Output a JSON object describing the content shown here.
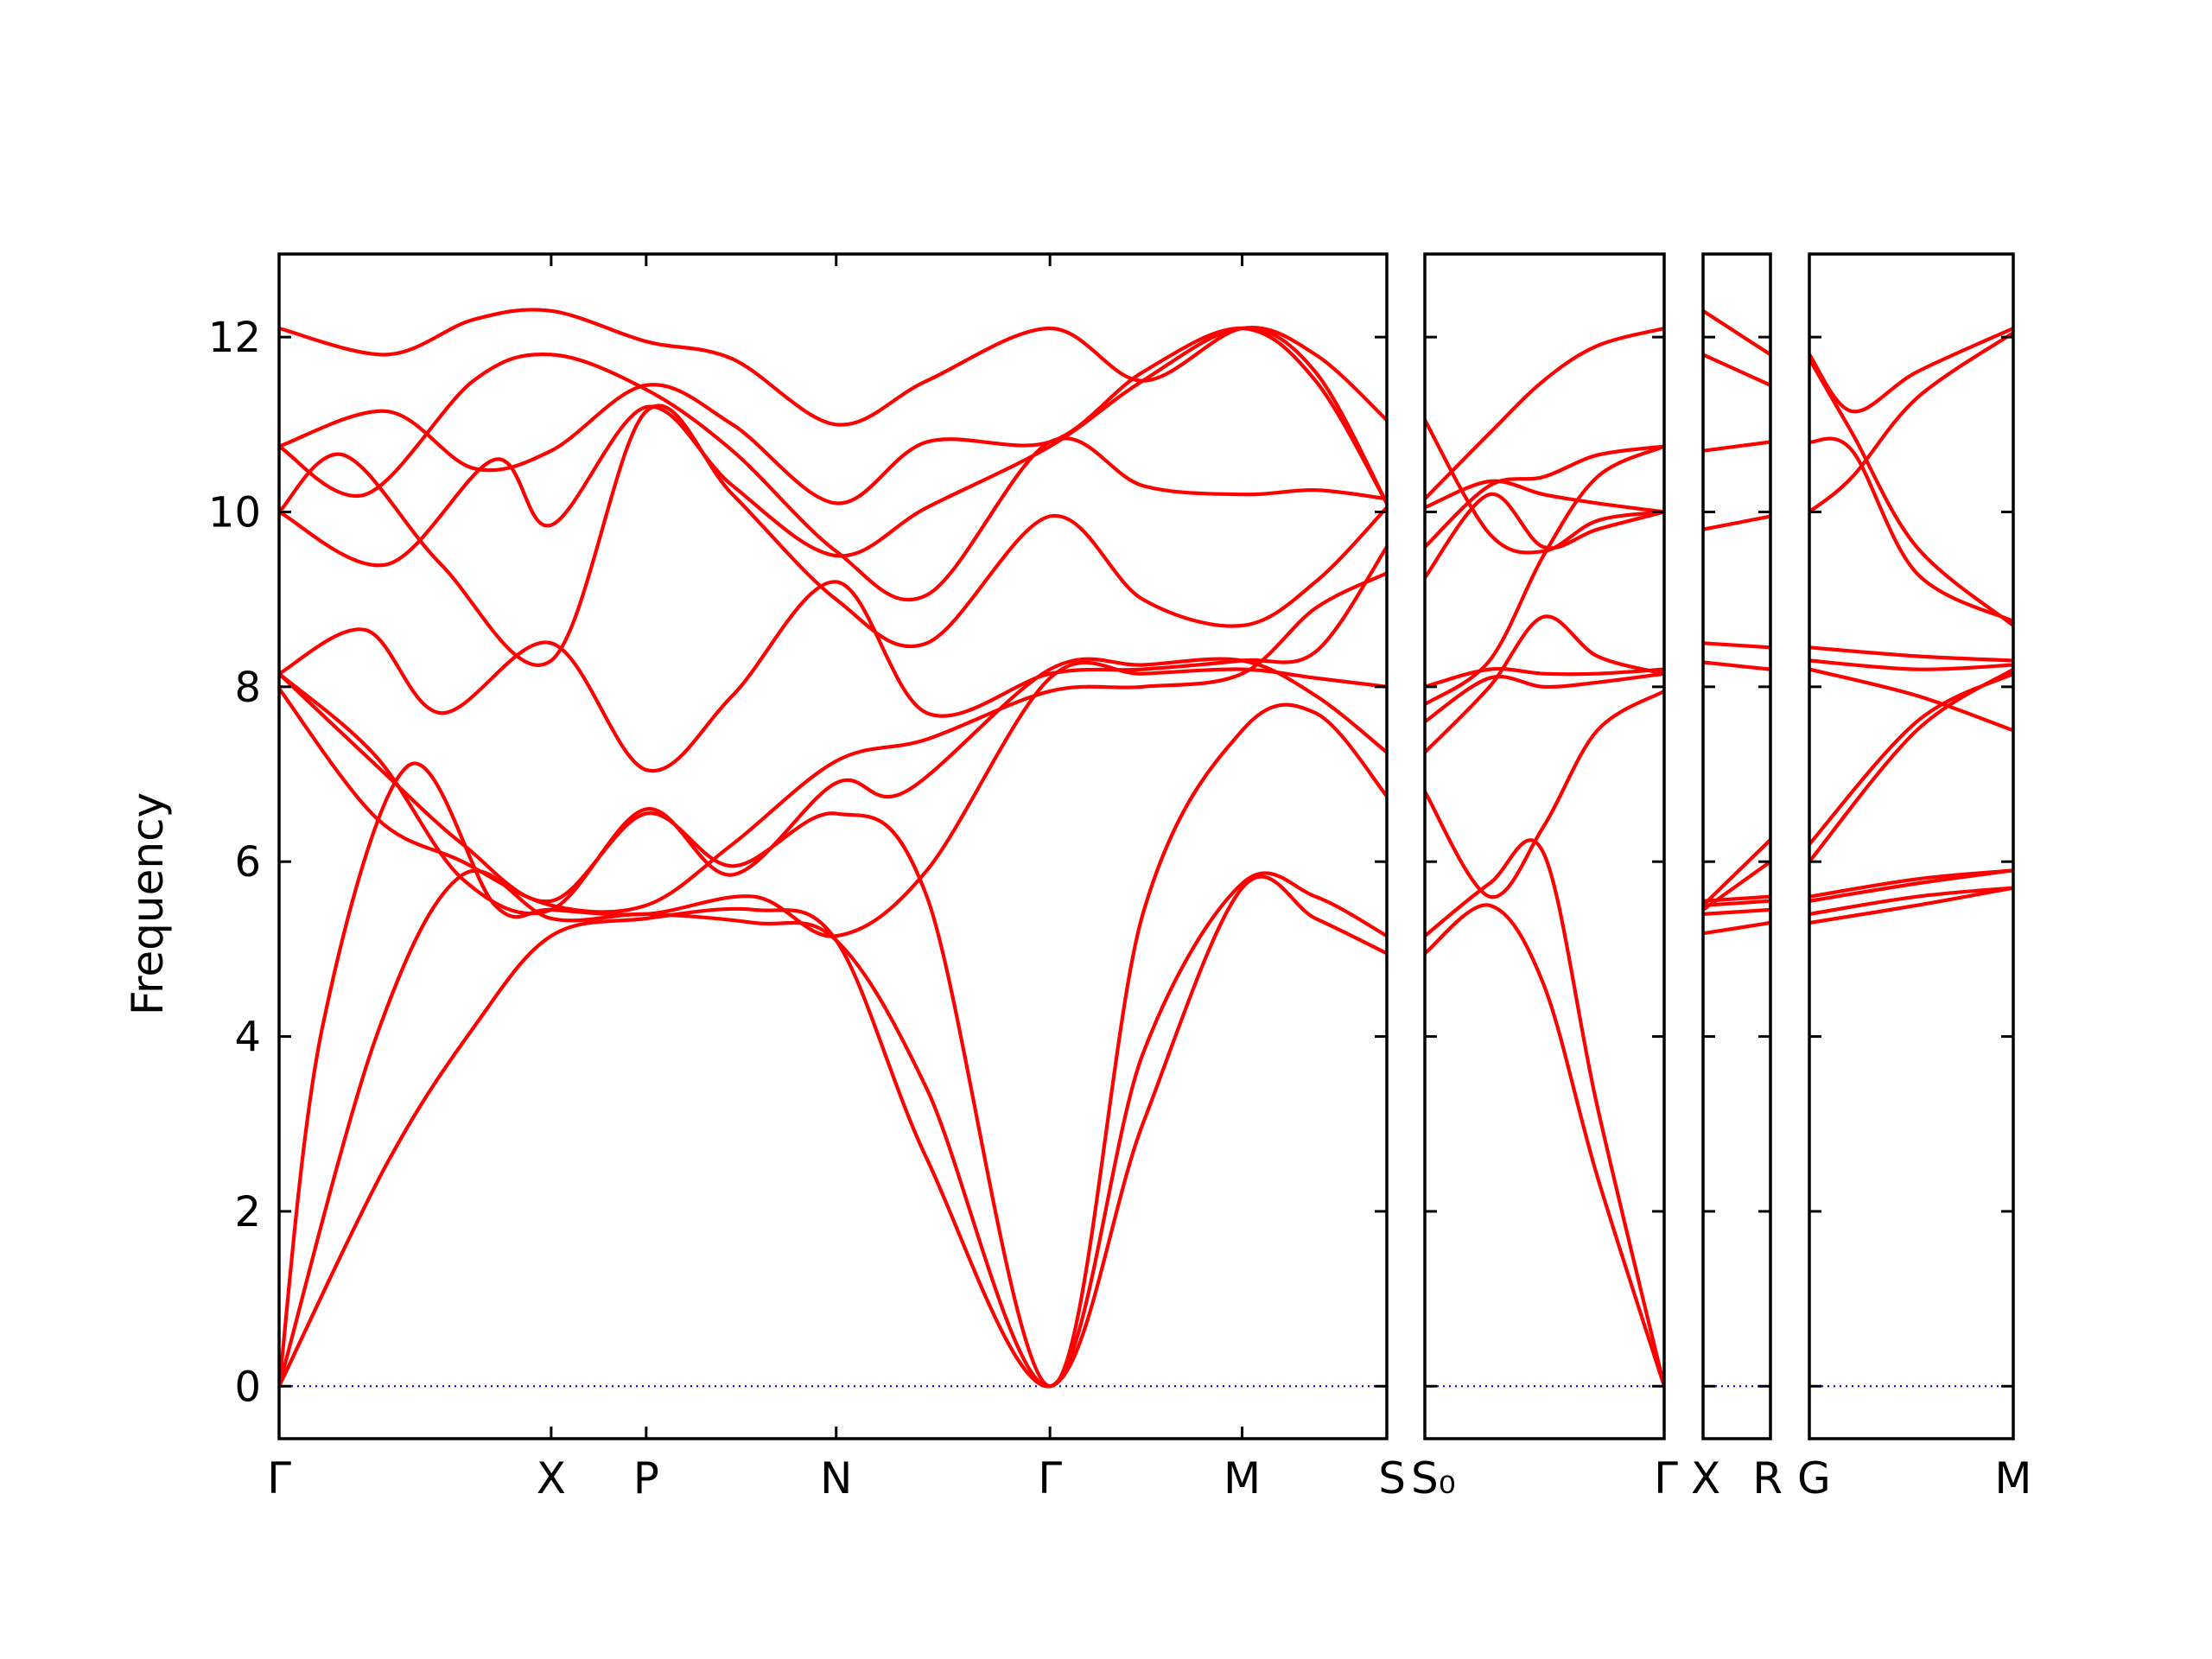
{
  "chart_data": {
    "type": "line",
    "title": "",
    "xlabel": "",
    "ylabel": "Frequency",
    "ylim": [
      -0.6,
      12.95
    ],
    "yticks": [
      0,
      2,
      4,
      6,
      8,
      10,
      12
    ],
    "grid": false,
    "legend": "none",
    "colors": {
      "band": "#ff0000",
      "zero": "#0000cc",
      "axis": "#000000"
    },
    "zero_line": {
      "value": 0,
      "style": "dotted"
    },
    "panels": [
      {
        "labels": [
          "Γ",
          "X",
          "P",
          "N",
          "Γ",
          "M",
          "S"
        ],
        "positions": [
          0,
          1.26,
          1.7,
          2.58,
          3.57,
          4.46,
          5.13
        ],
        "series": [
          {
            "x": [
              0,
              0.5,
              0.9,
              1.26,
              1.7,
              2.2,
              2.58,
              3.0,
              3.57,
              4.0,
              4.46,
              4.8,
              5.13
            ],
            "y": [
              0,
              2.55,
              4.1,
              5.15,
              5.35,
              5.45,
              5.1,
              2.6,
              0,
              3.0,
              5.7,
              5.35,
              4.95
            ]
          },
          {
            "x": [
              0,
              0.45,
              0.85,
              1.26,
              1.7,
              2.2,
              2.58,
              3.0,
              3.57,
              4.0,
              4.46,
              4.8,
              5.13
            ],
            "y": [
              0,
              4.0,
              5.85,
              5.35,
              5.4,
              5.3,
              5.1,
              3.4,
              0,
              3.8,
              5.75,
              5.6,
              5.15
            ]
          },
          {
            "x": [
              0,
              0.2,
              0.6,
              1.0,
              1.26,
              1.7,
              2.2,
              2.58,
              3.0,
              3.57,
              4.0,
              4.46,
              4.8,
              5.13
            ],
            "y": [
              0,
              4.1,
              7.1,
              5.5,
              5.45,
              5.4,
              5.6,
              5.15,
              5.9,
              8.1,
              8.15,
              8.2,
              8.1,
              8.0
            ]
          },
          {
            "x": [
              0,
              0.45,
              0.85,
              1.26,
              1.7,
              2.1,
              2.58,
              3.0,
              3.57,
              4.0,
              4.46,
              4.8,
              5.13
            ],
            "y": [
              8.15,
              7.1,
              6.2,
              5.55,
              6.55,
              5.95,
              6.55,
              5.6,
              0,
              5.4,
              7.5,
              7.7,
              6.75
            ]
          },
          {
            "x": [
              0,
              0.45,
              0.85,
              1.26,
              1.7,
              2.1,
              2.58,
              2.9,
              3.57,
              4.0,
              4.46,
              4.8,
              5.13
            ],
            "y": [
              8.15,
              7.2,
              5.8,
              5.45,
              6.6,
              5.85,
              6.9,
              6.8,
              8.2,
              8.25,
              8.3,
              7.9,
              7.25
            ]
          },
          {
            "x": [
              0,
              0.45,
              0.85,
              1.26,
              1.7,
              2.1,
              2.58,
              3.0,
              3.57,
              4.0,
              4.46,
              4.8,
              5.13
            ],
            "y": [
              7.98,
              6.5,
              6.0,
              5.5,
              5.5,
              6.2,
              7.15,
              7.4,
              7.95,
              8.0,
              8.15,
              8.9,
              9.3
            ]
          },
          {
            "x": [
              0,
              0.4,
              0.75,
              1.26,
              1.7,
              2.1,
              2.58,
              3.0,
              3.57,
              4.0,
              4.46,
              4.8,
              5.13
            ],
            "y": [
              8.15,
              8.65,
              7.7,
              8.5,
              7.05,
              7.9,
              9.2,
              7.7,
              8.15,
              8.2,
              8.3,
              8.4,
              9.6
            ]
          },
          {
            "x": [
              0,
              0.3,
              0.75,
              1.26,
              1.7,
              2.1,
              2.58,
              3.0,
              3.57,
              4.0,
              4.46,
              4.8,
              5.13
            ],
            "y": [
              10.0,
              10.65,
              9.4,
              8.3,
              11.15,
              10.2,
              9.0,
              8.5,
              9.95,
              9.0,
              8.7,
              9.2,
              10.05
            ]
          },
          {
            "x": [
              0,
              0.5,
              1.0,
              1.26,
              1.7,
              2.1,
              2.58,
              3.0,
              3.57,
              4.0,
              4.46,
              4.8,
              5.13
            ],
            "y": [
              10.0,
              9.4,
              10.6,
              9.85,
              11.2,
              10.3,
              9.5,
              10.05,
              10.75,
              11.5,
              12.1,
              11.6,
              10.1
            ]
          },
          {
            "x": [
              0,
              0.5,
              0.9,
              1.26,
              1.7,
              2.1,
              2.58,
              3.0,
              3.57,
              4.0,
              4.46,
              4.8,
              5.13
            ],
            "y": [
              10.75,
              11.15,
              10.5,
              10.7,
              11.45,
              11.0,
              10.1,
              10.8,
              10.8,
              11.6,
              12.1,
              11.5,
              10.1
            ]
          },
          {
            "x": [
              0,
              0.4,
              0.9,
              1.26,
              1.7,
              2.1,
              2.58,
              3.0,
              3.57,
              4.0,
              4.46,
              4.8,
              5.13
            ],
            "y": [
              10.75,
              10.2,
              11.5,
              11.8,
              11.4,
              10.7,
              9.55,
              9.05,
              10.8,
              10.3,
              10.2,
              10.25,
              10.15
            ]
          },
          {
            "x": [
              0,
              0.5,
              0.9,
              1.26,
              1.7,
              2.1,
              2.58,
              3.0,
              3.57,
              4.0,
              4.46,
              4.8,
              5.13
            ],
            "y": [
              12.1,
              11.8,
              12.2,
              12.3,
              11.95,
              11.75,
              11.0,
              11.5,
              12.1,
              11.5,
              12.1,
              11.8,
              11.05
            ]
          }
        ]
      },
      {
        "labels": [
          "S₀",
          "Γ"
        ],
        "positions": [
          0,
          1.11
        ],
        "series": [
          {
            "x": [
              0,
              0.3,
              0.55,
              0.8,
              1.11
            ],
            "y": [
              4.95,
              5.5,
              4.6,
              2.4,
              0
            ]
          },
          {
            "x": [
              0,
              0.3,
              0.55,
              0.8,
              1.11
            ],
            "y": [
              5.15,
              5.75,
              6.1,
              3.2,
              0
            ]
          },
          {
            "x": [
              0,
              0.3,
              0.55,
              0.8,
              1.11
            ],
            "y": [
              6.8,
              5.6,
              6.4,
              7.5,
              7.95
            ]
          },
          {
            "x": [
              0,
              0.3,
              0.55,
              0.8,
              1.11
            ],
            "y": [
              7.25,
              8.0,
              8.8,
              8.35,
              8.15
            ]
          },
          {
            "x": [
              0,
              0.3,
              0.55,
              0.8,
              1.11
            ],
            "y": [
              8.0,
              8.2,
              8.15,
              8.15,
              8.2
            ]
          },
          {
            "x": [
              0,
              0.3,
              0.55,
              0.8,
              1.11
            ],
            "y": [
              7.8,
              8.3,
              9.5,
              10.4,
              10.75
            ]
          },
          {
            "x": [
              0,
              0.3,
              0.55,
              0.8,
              1.11
            ],
            "y": [
              9.25,
              10.2,
              9.6,
              9.8,
              10.0
            ]
          },
          {
            "x": [
              0,
              0.3,
              0.55,
              0.8,
              1.11
            ],
            "y": [
              9.6,
              10.3,
              10.4,
              10.65,
              10.75
            ]
          },
          {
            "x": [
              0,
              0.3,
              0.55,
              0.8,
              1.11
            ],
            "y": [
              10.05,
              10.35,
              10.2,
              10.1,
              10.0
            ]
          },
          {
            "x": [
              0,
              0.3,
              0.55,
              0.8,
              1.11
            ],
            "y": [
              10.15,
              10.9,
              11.5,
              11.9,
              12.1
            ]
          },
          {
            "x": [
              0,
              0.3,
              0.55,
              0.8,
              1.11
            ],
            "y": [
              11.05,
              9.75,
              9.55,
              9.9,
              10.0
            ]
          },
          {
            "x": [
              0,
              0.3,
              0.55,
              0.8,
              1.11
            ],
            "y": [
              7.6,
              8.1,
              8.0,
              8.05,
              8.15
            ]
          }
        ]
      },
      {
        "labels": [
          "X",
          "R"
        ],
        "positions": [
          0,
          0.31
        ],
        "series": [
          {
            "x": [
              0,
              0.31
            ],
            "y": [
              5.18,
              5.3
            ]
          },
          {
            "x": [
              0,
              0.31
            ],
            "y": [
              5.4,
              5.45
            ]
          },
          {
            "x": [
              0,
              0.31
            ],
            "y": [
              5.5,
              5.55
            ]
          },
          {
            "x": [
              0,
              0.31
            ],
            "y": [
              5.55,
              5.6
            ]
          },
          {
            "x": [
              0,
              0.31
            ],
            "y": [
              5.45,
              6.0
            ]
          },
          {
            "x": [
              0,
              0.31
            ],
            "y": [
              5.5,
              6.25
            ]
          },
          {
            "x": [
              0,
              0.31
            ],
            "y": [
              8.28,
              8.2
            ]
          },
          {
            "x": [
              0,
              0.31
            ],
            "y": [
              8.5,
              8.45
            ]
          },
          {
            "x": [
              0,
              0.31
            ],
            "y": [
              9.8,
              9.95
            ]
          },
          {
            "x": [
              0,
              0.31
            ],
            "y": [
              10.7,
              10.8
            ]
          },
          {
            "x": [
              0,
              0.31
            ],
            "y": [
              11.8,
              11.45
            ]
          },
          {
            "x": [
              0,
              0.31
            ],
            "y": [
              12.3,
              11.8
            ]
          }
        ]
      },
      {
        "labels": [
          "G",
          "M"
        ],
        "positions": [
          0,
          0.95
        ],
        "series": [
          {
            "x": [
              0,
              0.5,
              0.95
            ],
            "y": [
              5.3,
              5.5,
              5.7
            ]
          },
          {
            "x": [
              0,
              0.5,
              0.95
            ],
            "y": [
              5.4,
              5.6,
              5.7
            ]
          },
          {
            "x": [
              0,
              0.5,
              0.95
            ],
            "y": [
              5.55,
              5.75,
              5.9
            ]
          },
          {
            "x": [
              0,
              0.5,
              0.95
            ],
            "y": [
              5.6,
              5.8,
              5.9
            ]
          },
          {
            "x": [
              0,
              0.5,
              0.95
            ],
            "y": [
              6.0,
              7.5,
              8.2
            ]
          },
          {
            "x": [
              0,
              0.5,
              0.95
            ],
            "y": [
              6.2,
              7.6,
              8.15
            ]
          },
          {
            "x": [
              0,
              0.5,
              0.95
            ],
            "y": [
              8.2,
              7.9,
              7.5
            ]
          },
          {
            "x": [
              0,
              0.5,
              0.95
            ],
            "y": [
              8.45,
              8.35,
              8.3
            ]
          },
          {
            "x": [
              0,
              0.5,
              0.95
            ],
            "y": [
              8.3,
              8.2,
              8.25
            ]
          },
          {
            "x": [
              0,
              0.2,
              0.5,
              0.95
            ],
            "y": [
              10.0,
              10.4,
              11.3,
              12.05
            ]
          },
          {
            "x": [
              0,
              0.2,
              0.5,
              0.95
            ],
            "y": [
              10.8,
              10.7,
              9.3,
              8.75
            ]
          },
          {
            "x": [
              0,
              0.2,
              0.5,
              0.95
            ],
            "y": [
              11.8,
              11.15,
              11.6,
              12.1
            ]
          },
          {
            "x": [
              0,
              0.2,
              0.5,
              0.95
            ],
            "y": [
              11.75,
              10.9,
              9.6,
              8.7
            ]
          }
        ]
      }
    ]
  }
}
